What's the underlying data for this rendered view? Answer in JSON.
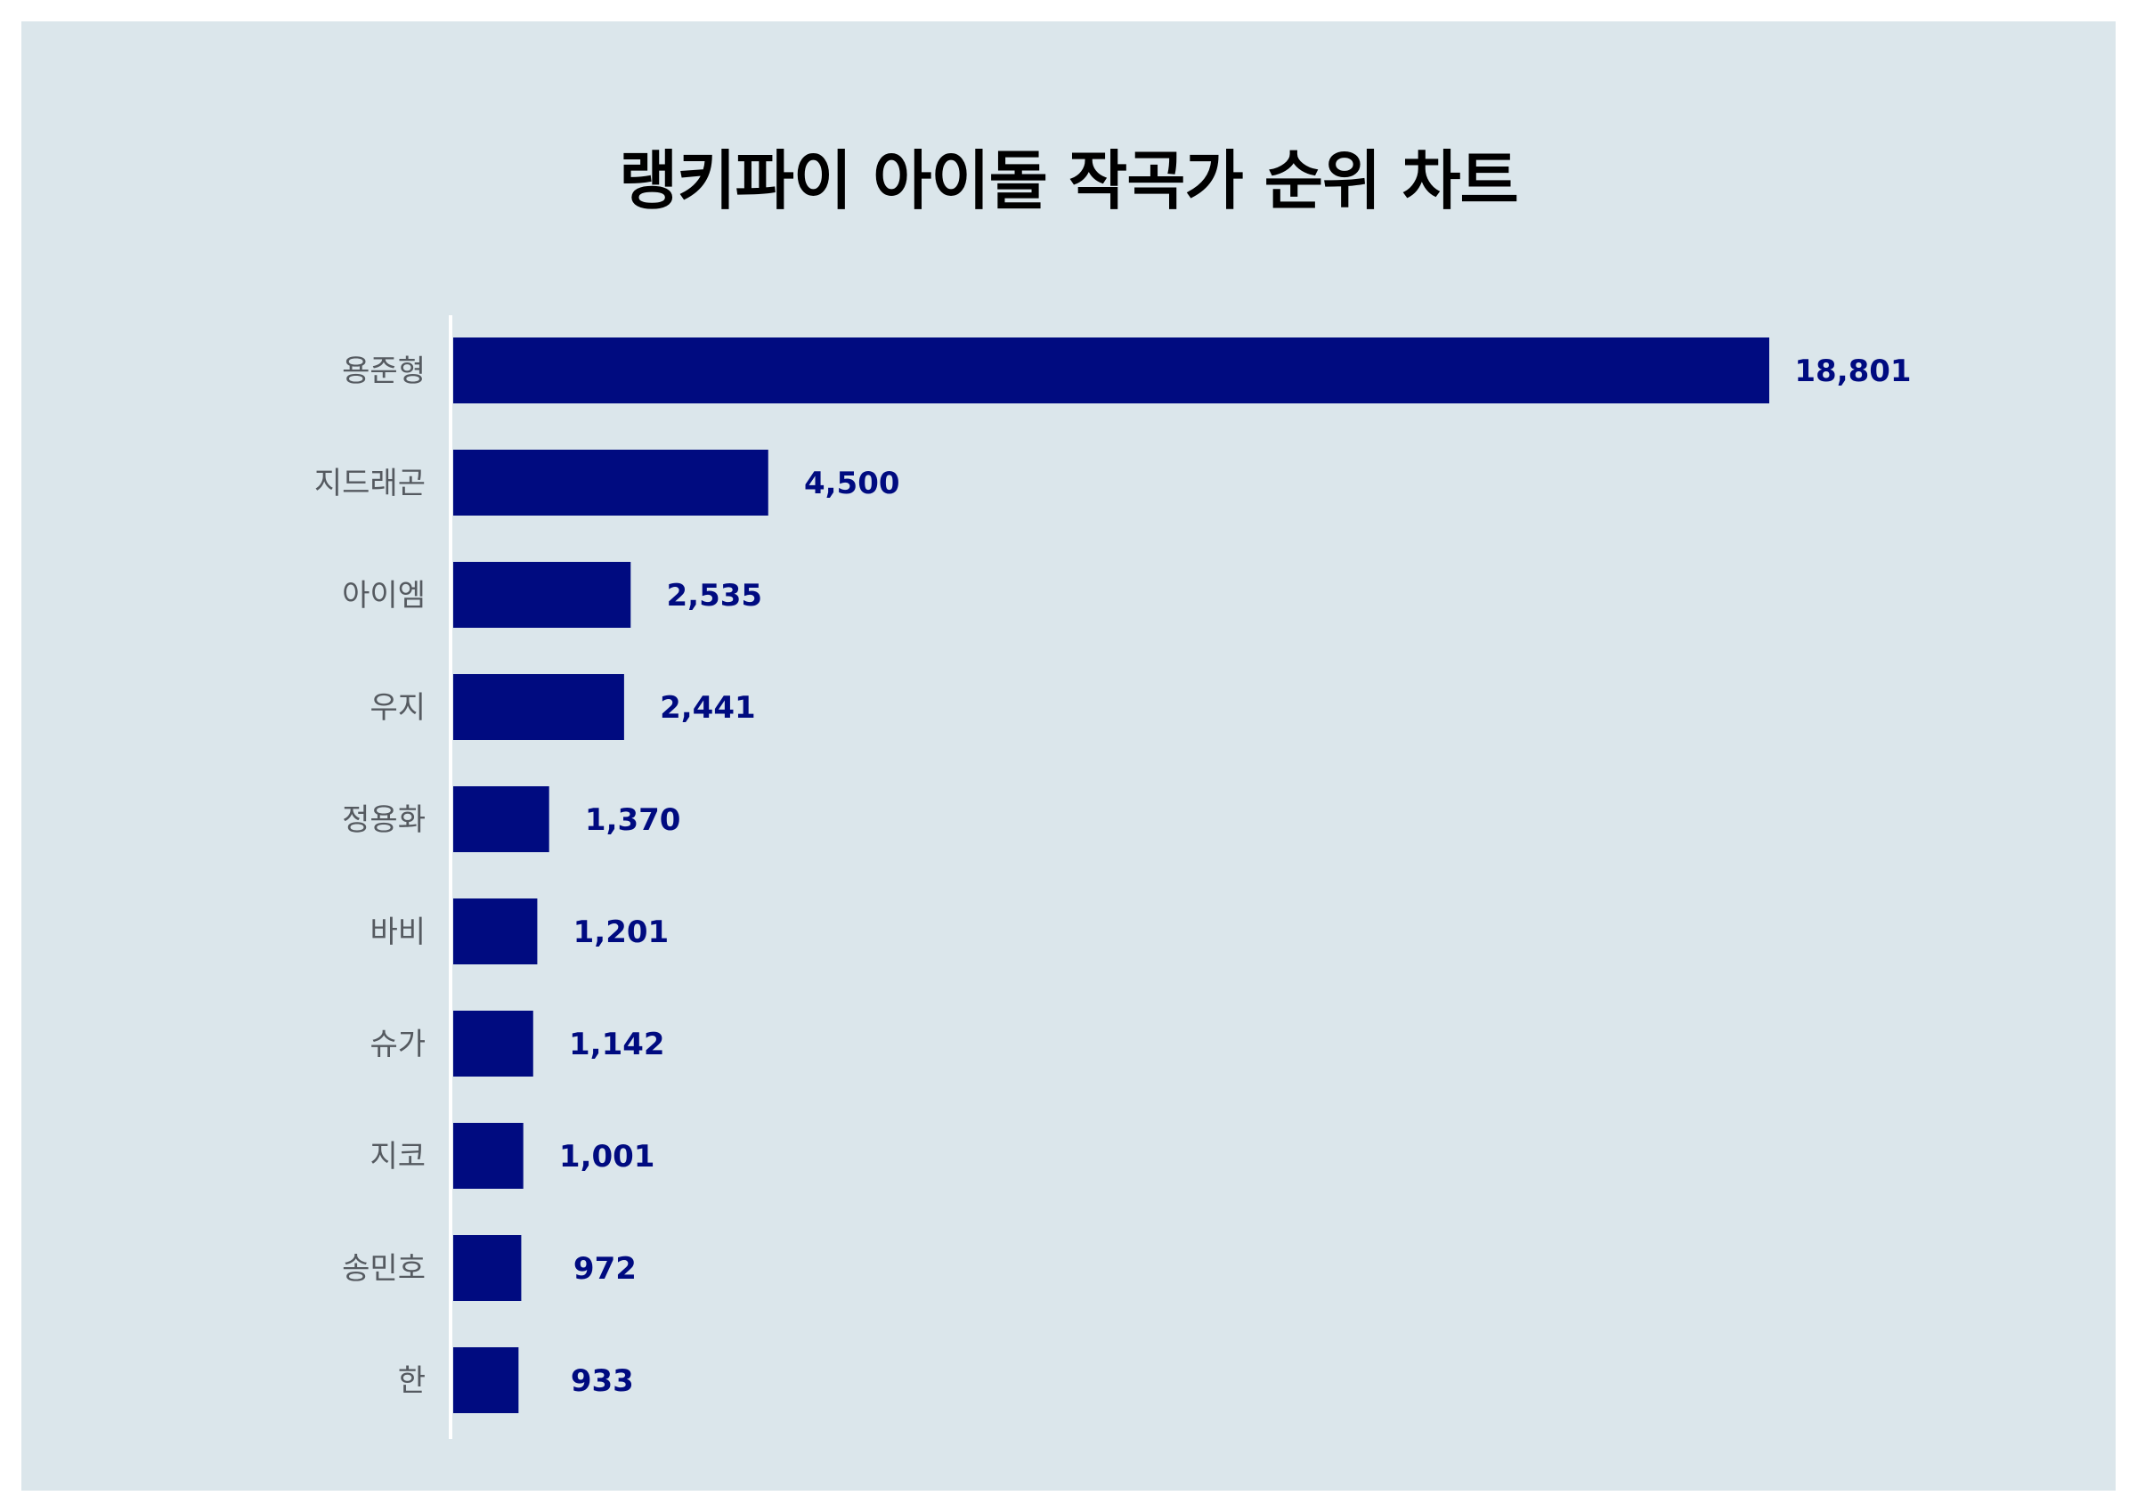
{
  "chart_data": {
    "type": "bar",
    "orientation": "horizontal",
    "title": "랭키파이 아이돌 작곡가 순위 차트",
    "categories": [
      "용준형",
      "지드래곤",
      "아이엠",
      "우지",
      "정용화",
      "바비",
      "슈가",
      "지코",
      "송민호",
      "한"
    ],
    "values": [
      18801,
      4500,
      2535,
      2441,
      1370,
      1201,
      1142,
      1001,
      972,
      933
    ],
    "value_labels": [
      "18,801",
      "4,500",
      "2,535",
      "2,441",
      "1,370",
      "1,201",
      "1,142",
      "1,001",
      "972",
      "933"
    ],
    "xlim": [
      0,
      20000
    ],
    "grid": false,
    "bar_color": "#000b80",
    "value_label_color": "#000b80",
    "background_color": "#dbe6eb"
  }
}
